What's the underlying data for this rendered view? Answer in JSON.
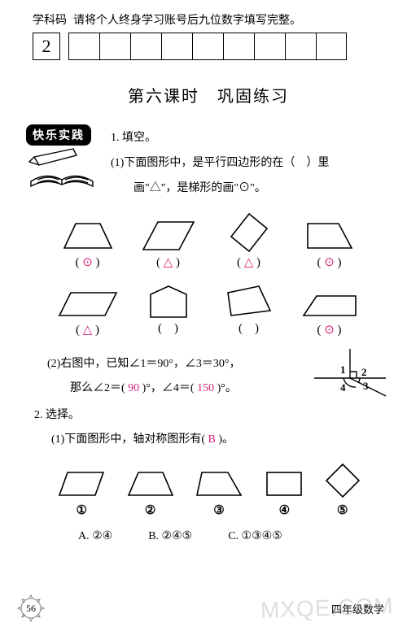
{
  "header": {
    "label_left": "学科码",
    "label_right": "请将个人终身学习账号后九位数字填写完整。",
    "big_digit": "2",
    "cell_count": 9
  },
  "title": "第六课时　巩固练习",
  "badge": "快乐实践",
  "q1": {
    "heading": "1. 填空。",
    "sub1_line1": "(1)下面图形中，是平行四边形的在（　）里",
    "sub1_line2": "画\"△\"，是梯形的画\"⊙\"。"
  },
  "shapes": {
    "row1": [
      {
        "type": "trapezoid_iso",
        "answer": "⊙",
        "color": "#d81e7a"
      },
      {
        "type": "parallelogram",
        "answer": "△",
        "color": "#d81e7a"
      },
      {
        "type": "rhombus_tall",
        "answer": "△",
        "color": "#d81e7a"
      },
      {
        "type": "trapezoid_right",
        "answer": "⊙",
        "color": "#d81e7a"
      }
    ],
    "row2": [
      {
        "type": "parallelogram2",
        "answer": "△",
        "color": "#d81e7a"
      },
      {
        "type": "pentagon",
        "answer": "",
        "color": "#d81e7a"
      },
      {
        "type": "quad_irregular",
        "answer": "",
        "color": "#d81e7a"
      },
      {
        "type": "trapezoid_right2",
        "answer": "⊙",
        "color": "#d81e7a"
      }
    ]
  },
  "q2": {
    "line1_a": "(2)右图中，已知∠1＝90°，∠3＝30°，",
    "line2_a": "那么∠2＝(",
    "ans2": "90",
    "line2_b": ")°，∠4＝(",
    "ans4": "150",
    "line2_c": ")°。"
  },
  "q3": {
    "heading": "2. 选择。",
    "sub1_a": "(1)下面图形中，轴对称图形有(",
    "ans": "B",
    "sub1_b": ")。",
    "choices": [
      "①",
      "②",
      "③",
      "④",
      "⑤"
    ],
    "abc": {
      "A": "A. ②④",
      "B": "B. ②④⑤",
      "C": "C. ①③④⑤"
    }
  },
  "footer": {
    "page": "56",
    "right": "四年级数学"
  },
  "watermark": "MXQE.COM",
  "colors": {
    "answer": "#d81e7a",
    "stroke": "#000000"
  }
}
